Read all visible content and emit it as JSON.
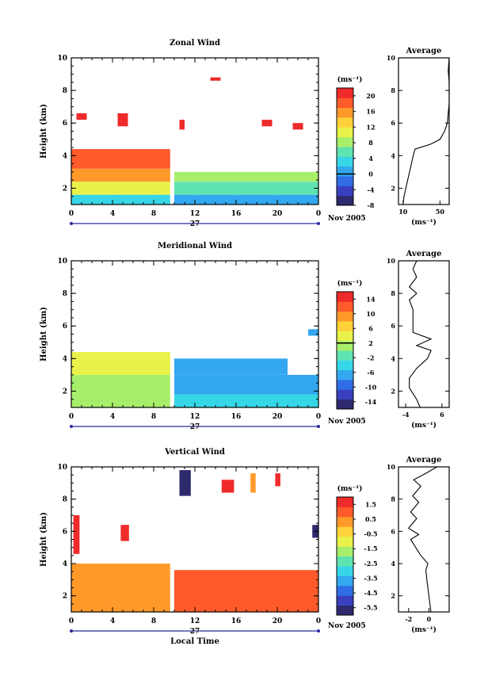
{
  "figure": {
    "date_label": "Nov 2005",
    "xlabel_bottom": "Local Time",
    "units_label": "(ms⁻¹)"
  },
  "chart_data": [
    {
      "type": "heatmap",
      "title": "Zonal Wind",
      "ylabel": "Height (km)",
      "xlabel": "",
      "x_ticks": [
        "0",
        "4",
        "8",
        "12",
        "16",
        "20",
        "0"
      ],
      "day_label": "27",
      "ylim": [
        1,
        10
      ],
      "y_ticks": [
        2,
        4,
        6,
        8,
        10
      ],
      "colorbar": {
        "ticks": [
          20,
          16,
          12,
          8,
          4,
          0,
          -4,
          -8
        ],
        "range": [
          -8,
          22
        ],
        "zero_line": 0
      },
      "cells": [
        {
          "t0": 0.0,
          "t1": 9.6,
          "z0": 1.0,
          "z1": 1.6,
          "v": 4
        },
        {
          "t0": 10.0,
          "t1": 24.0,
          "z0": 1.0,
          "z1": 1.6,
          "v": 0
        },
        {
          "t0": 0.0,
          "t1": 9.6,
          "z0": 1.6,
          "z1": 2.4,
          "v": 11
        },
        {
          "t0": 10.0,
          "t1": 24.0,
          "z0": 1.6,
          "z1": 2.4,
          "v": 6
        },
        {
          "t0": 0.0,
          "t1": 9.6,
          "z0": 2.4,
          "z1": 3.2,
          "v": 16
        },
        {
          "t0": 10.0,
          "t1": 24.0,
          "z0": 2.4,
          "z1": 3.0,
          "v": 9
        },
        {
          "t0": 0.0,
          "t1": 9.6,
          "z0": 3.2,
          "z1": 4.4,
          "v": 17
        },
        {
          "t0": 0.5,
          "t1": 1.5,
          "z0": 6.2,
          "z1": 6.6,
          "v": 20
        },
        {
          "t0": 4.5,
          "t1": 5.5,
          "z0": 5.8,
          "z1": 6.6,
          "v": 21
        },
        {
          "t0": 10.5,
          "t1": 11.0,
          "z0": 5.6,
          "z1": 6.2,
          "v": 21
        },
        {
          "t0": 13.5,
          "t1": 14.5,
          "z0": 8.6,
          "z1": 8.8,
          "v": 21
        },
        {
          "t0": 18.5,
          "t1": 19.5,
          "z0": 5.8,
          "z1": 6.2,
          "v": 21
        },
        {
          "t0": 21.5,
          "t1": 22.5,
          "z0": 5.6,
          "z1": 6.0,
          "v": 21
        }
      ],
      "profile": {
        "title": "Average",
        "xlim": [
          5,
          60
        ],
        "x_ticks": [
          10,
          50
        ],
        "xlabel": "(ms⁻¹)",
        "points": [
          [
            10,
            1.0
          ],
          [
            11,
            1.5
          ],
          [
            13,
            2.0
          ],
          [
            15,
            2.5
          ],
          [
            17,
            3.0
          ],
          [
            19,
            3.5
          ],
          [
            21,
            4.0
          ],
          [
            23,
            4.4
          ],
          [
            40,
            4.7
          ],
          [
            50,
            5.0
          ],
          [
            55,
            5.5
          ],
          [
            58,
            6.0
          ],
          [
            59,
            6.6
          ],
          [
            60,
            7.2
          ],
          [
            60,
            8.5
          ],
          [
            59,
            9.2
          ],
          [
            60,
            10.0
          ]
        ]
      }
    },
    {
      "type": "heatmap",
      "title": "Meridional Wind",
      "ylabel": "Height (km)",
      "xlabel": "",
      "x_ticks": [
        "0",
        "4",
        "8",
        "12",
        "16",
        "20",
        "0"
      ],
      "day_label": "27",
      "ylim": [
        1,
        10
      ],
      "y_ticks": [
        2,
        4,
        6,
        8,
        10
      ],
      "colorbar": {
        "ticks": [
          14,
          10,
          6,
          2,
          -2,
          -6,
          -10,
          -14
        ],
        "range": [
          -16,
          16
        ],
        "zero_line": 2
      },
      "cells": [
        {
          "t0": 0.0,
          "t1": 9.6,
          "z0": 1.0,
          "z1": 1.8,
          "v": 0
        },
        {
          "t0": 10.0,
          "t1": 24.0,
          "z0": 1.0,
          "z1": 1.8,
          "v": -4
        },
        {
          "t0": 0.0,
          "t1": 9.6,
          "z0": 1.8,
          "z1": 3.0,
          "v": 2
        },
        {
          "t0": 10.0,
          "t1": 24.0,
          "z0": 1.8,
          "z1": 3.0,
          "v": -8
        },
        {
          "t0": 0.0,
          "t1": 9.6,
          "z0": 3.0,
          "z1": 4.4,
          "v": 4
        },
        {
          "t0": 10.0,
          "t1": 21.0,
          "z0": 3.0,
          "z1": 4.0,
          "v": -6
        },
        {
          "t0": 23.0,
          "t1": 24.0,
          "z0": 5.4,
          "z1": 5.8,
          "v": -6
        }
      ],
      "profile": {
        "title": "Average",
        "xlim": [
          -6,
          8
        ],
        "x_ticks": [
          -4,
          6
        ],
        "xlabel": "(ms⁻¹)",
        "points": [
          [
            0,
            1.0
          ],
          [
            -1,
            1.5
          ],
          [
            -3,
            2.2
          ],
          [
            -3,
            2.8
          ],
          [
            -1,
            3.4
          ],
          [
            2,
            4.0
          ],
          [
            3,
            4.5
          ],
          [
            -1,
            4.8
          ],
          [
            3,
            5.2
          ],
          [
            -2,
            5.6
          ],
          [
            -2,
            7.0
          ],
          [
            -3,
            7.6
          ],
          [
            -1,
            8.0
          ],
          [
            -3,
            8.4
          ],
          [
            -1,
            9.0
          ],
          [
            -2,
            9.5
          ],
          [
            -1,
            10.0
          ]
        ]
      }
    },
    {
      "type": "heatmap",
      "title": "Vertical Wind",
      "ylabel": "Height (km)",
      "xlabel": "Local Time",
      "x_ticks": [
        "0",
        "4",
        "8",
        "12",
        "16",
        "20",
        "0"
      ],
      "day_label": "27",
      "ylim": [
        1,
        10
      ],
      "y_ticks": [
        2,
        4,
        6,
        8,
        10
      ],
      "colorbar": {
        "ticks": [
          1.5,
          0.5,
          -0.5,
          -1.5,
          -2.5,
          -3.5,
          -4.5,
          -5.5
        ],
        "range": [
          -6,
          2
        ],
        "zero_line": null
      },
      "cells": [
        {
          "t0": 0.0,
          "t1": 9.6,
          "z0": 1.0,
          "z1": 4.0,
          "v": 0.4
        },
        {
          "t0": 10.0,
          "t1": 24.0,
          "z0": 1.0,
          "z1": 3.6,
          "v": 1.0
        },
        {
          "t0": 0.2,
          "t1": 0.8,
          "z0": 4.6,
          "z1": 7.0,
          "v": 1.8
        },
        {
          "t0": 4.8,
          "t1": 5.6,
          "z0": 5.4,
          "z1": 6.4,
          "v": 1.8
        },
        {
          "t0": 10.5,
          "t1": 11.6,
          "z0": 8.2,
          "z1": 9.8,
          "v": -5.5
        },
        {
          "t0": 14.6,
          "t1": 15.8,
          "z0": 8.4,
          "z1": 9.2,
          "v": 1.8
        },
        {
          "t0": 17.4,
          "t1": 17.9,
          "z0": 8.4,
          "z1": 9.6,
          "v": 0.5
        },
        {
          "t0": 19.8,
          "t1": 20.3,
          "z0": 8.8,
          "z1": 9.6,
          "v": 1.8
        },
        {
          "t0": 23.4,
          "t1": 24.0,
          "z0": 5.6,
          "z1": 6.4,
          "v": -5.5
        }
      ],
      "profile": {
        "title": "Average",
        "xlim": [
          -3,
          2
        ],
        "x_ticks": [
          -2,
          0
        ],
        "xlabel": "(ms⁻¹)",
        "points": [
          [
            0.2,
            1.0
          ],
          [
            0.0,
            2.0
          ],
          [
            -0.2,
            3.0
          ],
          [
            -0.3,
            3.6
          ],
          [
            -0.1,
            4.0
          ],
          [
            -0.8,
            4.5
          ],
          [
            -1.3,
            5.0
          ],
          [
            -1.8,
            5.5
          ],
          [
            -1.0,
            5.8
          ],
          [
            -2.0,
            6.2
          ],
          [
            -1.2,
            6.8
          ],
          [
            -1.8,
            7.2
          ],
          [
            -1.0,
            7.8
          ],
          [
            -1.6,
            8.2
          ],
          [
            -0.8,
            8.8
          ],
          [
            -1.5,
            9.2
          ],
          [
            -0.3,
            9.6
          ],
          [
            0.8,
            10.0
          ]
        ]
      }
    }
  ]
}
